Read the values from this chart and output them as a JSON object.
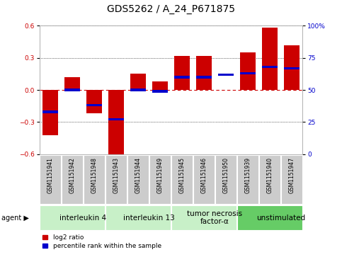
{
  "title": "GDS5262 / A_24_P671875",
  "samples": [
    "GSM1151941",
    "GSM1151942",
    "GSM1151948",
    "GSM1151943",
    "GSM1151944",
    "GSM1151949",
    "GSM1151945",
    "GSM1151946",
    "GSM1151950",
    "GSM1151939",
    "GSM1151940",
    "GSM1151947"
  ],
  "log2_ratios": [
    -0.42,
    0.12,
    -0.22,
    -0.62,
    0.15,
    0.08,
    0.32,
    0.32,
    0.0,
    0.35,
    0.58,
    0.42
  ],
  "percentile_ranks": [
    33,
    50,
    38,
    27,
    50,
    49,
    60,
    60,
    62,
    63,
    68,
    67
  ],
  "agents": [
    {
      "label": "interleukin 4",
      "start": 0,
      "end": 3,
      "color": "#c8f0c8"
    },
    {
      "label": "interleukin 13",
      "start": 3,
      "end": 6,
      "color": "#c8f0c8"
    },
    {
      "label": "tumor necrosis\nfactor-α",
      "start": 6,
      "end": 9,
      "color": "#c8f0c8"
    },
    {
      "label": "unstimulated",
      "start": 9,
      "end": 12,
      "color": "#66cc66"
    }
  ],
  "bar_color": "#cc0000",
  "percentile_color": "#0000cc",
  "zero_line_color": "#cc0000",
  "grid_color": "#000000",
  "ylim_left": [
    -0.6,
    0.6
  ],
  "ylim_right": [
    0,
    100
  ],
  "yticks_left": [
    -0.6,
    -0.3,
    0.0,
    0.3,
    0.6
  ],
  "yticks_right": [
    0,
    25,
    50,
    75,
    100
  ],
  "ytick_labels_right": [
    "0",
    "25",
    "50",
    "75",
    "100%"
  ],
  "bar_width": 0.7,
  "legend_items": [
    {
      "label": "log2 ratio",
      "color": "#cc0000"
    },
    {
      "label": "percentile rank within the sample",
      "color": "#0000cc"
    }
  ],
  "agent_label": "agent",
  "bg_color": "#ffffff",
  "plot_bg_color": "#ffffff",
  "sample_box_color": "#cccccc",
  "title_fontsize": 10,
  "tick_fontsize": 6.5,
  "label_fontsize": 7.5,
  "agent_fontsize": 7.5
}
